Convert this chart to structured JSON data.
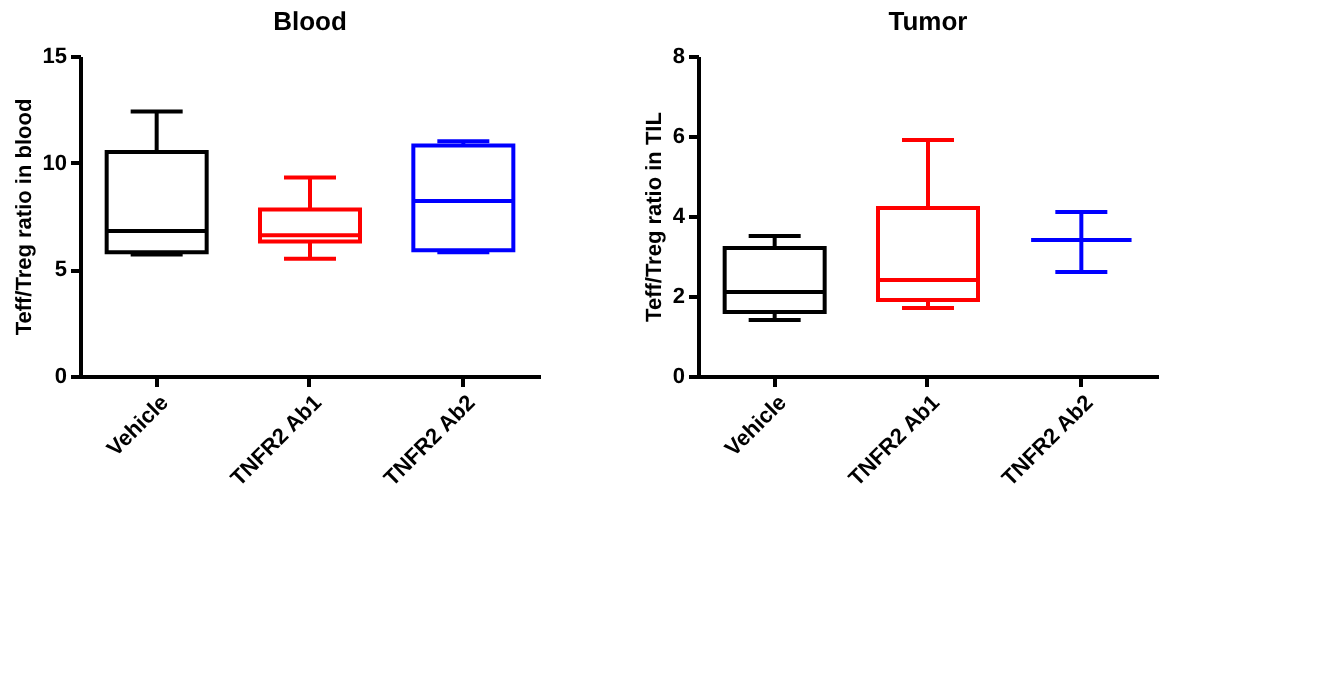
{
  "chart_data": [
    {
      "type": "box",
      "title": "Blood",
      "ylabel": "Teff/Treg ratio in blood",
      "categories": [
        "Vehicle",
        "TNFR2 Ab1",
        "TNFR2 Ab2"
      ],
      "colors": [
        "#000000",
        "#ff0000",
        "#0000ff"
      ],
      "ylim": [
        0,
        15
      ],
      "yticks": [
        0,
        5,
        10,
        15
      ],
      "grid": false,
      "legend": false,
      "boxes": [
        {
          "low": 5.7,
          "q1": 5.8,
          "median": 6.8,
          "q3": 10.5,
          "high": 12.4
        },
        {
          "low": 5.5,
          "q1": 6.3,
          "median": 6.6,
          "q3": 7.8,
          "high": 9.3
        },
        {
          "low": 5.8,
          "q1": 5.9,
          "median": 8.2,
          "q3": 10.8,
          "high": 11.0
        }
      ]
    },
    {
      "type": "box",
      "title": "Tumor",
      "ylabel": "Teff/Treg ratio in TIL",
      "categories": [
        "Vehicle",
        "TNFR2 Ab1",
        "TNFR2 Ab2"
      ],
      "colors": [
        "#000000",
        "#ff0000",
        "#0000ff"
      ],
      "ylim": [
        0,
        8
      ],
      "yticks": [
        0,
        2,
        4,
        6,
        8
      ],
      "grid": false,
      "legend": false,
      "boxes": [
        {
          "low": 1.4,
          "q1": 1.6,
          "median": 2.1,
          "q3": 3.2,
          "high": 3.5
        },
        {
          "low": 1.7,
          "q1": 1.9,
          "median": 2.4,
          "q3": 4.2,
          "high": 5.9
        },
        {
          "low": 2.6,
          "q1": 3.4,
          "median": 3.4,
          "q3": 3.4,
          "high": 4.1
        }
      ]
    }
  ]
}
